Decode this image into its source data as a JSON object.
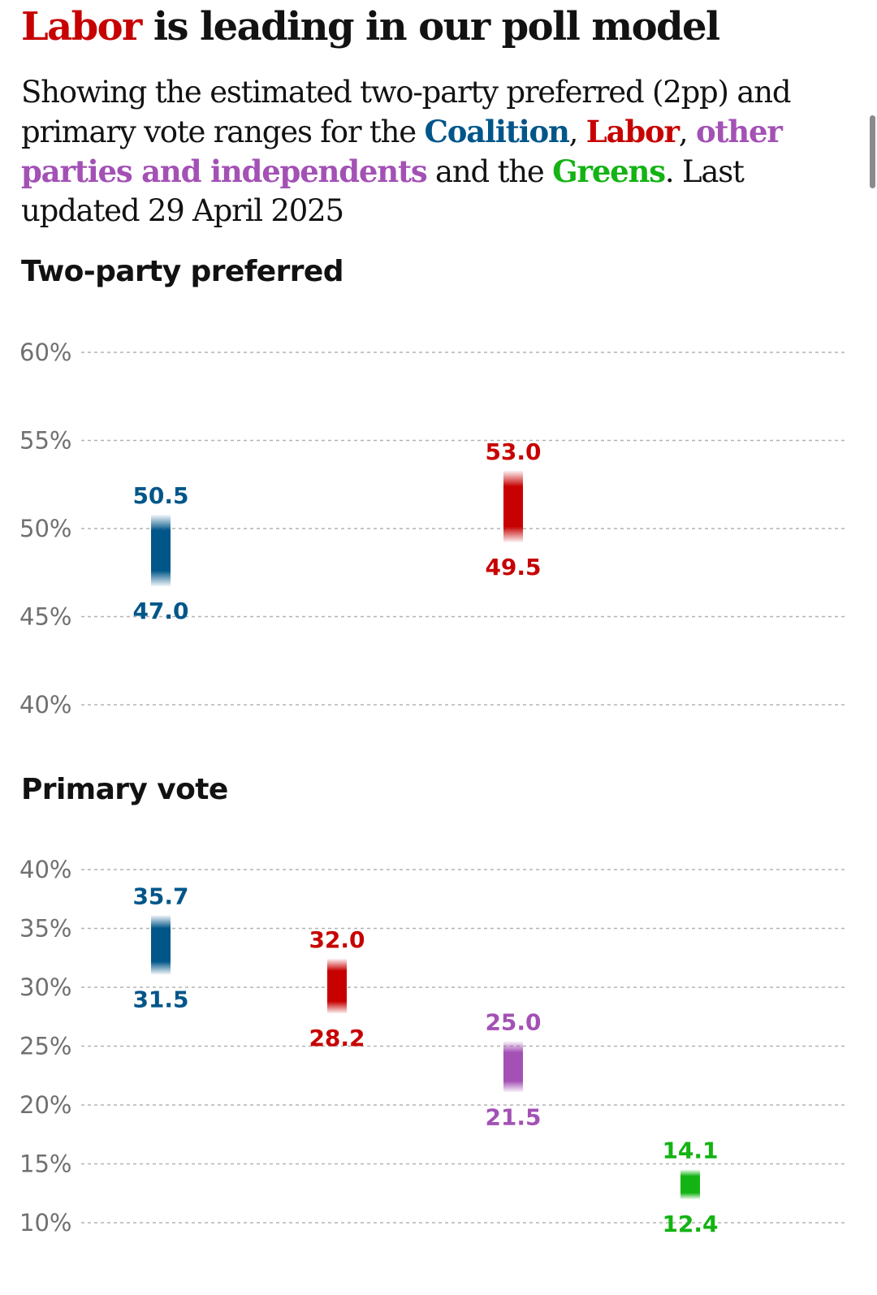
{
  "headline": {
    "lead": "Labor",
    "rest": " is leading in our poll model"
  },
  "standfirst": {
    "part1": "Showing the estimated two-party preferred (2pp) and primary vote ranges for the ",
    "coalition": "Coalition",
    "sep1": ", ",
    "labor": "Labor",
    "sep2": ", ",
    "others": "other parties and independents",
    "part2": " and the ",
    "greens": "Greens",
    "part3": ". Last updated 29 April 2025"
  },
  "colors": {
    "coalition": "#005689",
    "labor": "#c70000",
    "others": "#a351b5",
    "greens": "#13b313",
    "grid": "#b3b3b3",
    "tick": "#707070"
  },
  "chart_data": [
    {
      "type": "range",
      "title": "Two-party preferred",
      "ylim": [
        40,
        60
      ],
      "yticks": [
        60,
        55,
        50,
        45,
        40
      ],
      "tick_suffix": "%",
      "series": [
        {
          "name": "Coalition",
          "party": "coalition",
          "low": 47.0,
          "high": 50.5,
          "low_label": "47.0",
          "high_label": "50.5"
        },
        {
          "name": "Labor",
          "party": "labor",
          "low": 49.5,
          "high": 53.0,
          "low_label": "49.5",
          "high_label": "53.0"
        }
      ]
    },
    {
      "type": "range",
      "title": "Primary vote",
      "ylim": [
        10,
        40
      ],
      "yticks": [
        40,
        35,
        30,
        25,
        20,
        15,
        10
      ],
      "tick_suffix": "%",
      "series": [
        {
          "name": "Coalition",
          "party": "coalition",
          "low": 31.5,
          "high": 35.7,
          "low_label": "31.5",
          "high_label": "35.7"
        },
        {
          "name": "Labor",
          "party": "labor",
          "low": 28.2,
          "high": 32.0,
          "low_label": "28.2",
          "high_label": "32.0"
        },
        {
          "name": "Others",
          "party": "others",
          "low": 21.5,
          "high": 25.0,
          "low_label": "21.5",
          "high_label": "25.0"
        },
        {
          "name": "Greens",
          "party": "greens",
          "low": 12.4,
          "high": 14.1,
          "low_label": "12.4",
          "high_label": "14.1"
        }
      ]
    }
  ]
}
